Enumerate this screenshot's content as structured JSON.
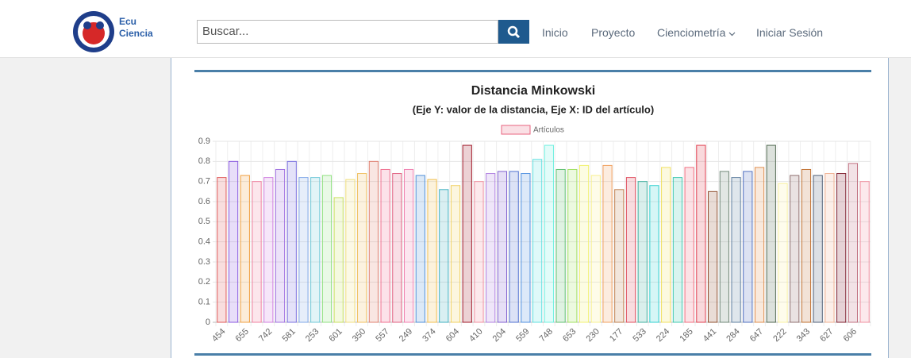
{
  "nav": {
    "brand": [
      "Ecu",
      "Ciencia"
    ],
    "search_placeholder": "Buscar...",
    "links": [
      "Inicio",
      "Proyecto",
      "Cienciometría",
      "Iniciar Sesión"
    ]
  },
  "chart_data": {
    "type": "bar",
    "title": "Distancia Minkowski",
    "subtitle": "(Eje Y: valor de la distancia, Eje X: ID del artículo)",
    "legend": {
      "name": "Artículos",
      "color": "#e8637f"
    },
    "categories": [
      "454",
      null,
      "655",
      null,
      "742",
      null,
      "581",
      null,
      "253",
      null,
      "601",
      null,
      "350",
      null,
      "557",
      null,
      "249",
      null,
      "374",
      null,
      "604",
      null,
      "410",
      null,
      "204",
      null,
      "559",
      null,
      "748",
      null,
      "653",
      null,
      "230",
      null,
      "177",
      null,
      "533",
      null,
      "224",
      null,
      "185",
      null,
      "441",
      null,
      "284",
      null,
      "647",
      null,
      "222",
      null,
      "343",
      null,
      "627",
      null,
      "606",
      null
    ],
    "values": [
      0.72,
      0.8,
      0.73,
      0.7,
      0.72,
      0.76,
      0.8,
      0.72,
      0.72,
      0.73,
      0.62,
      0.71,
      0.74,
      0.8,
      0.76,
      0.74,
      0.76,
      0.73,
      0.71,
      0.66,
      0.68,
      0.88,
      0.7,
      0.74,
      0.75,
      0.75,
      0.74,
      0.81,
      0.88,
      0.76,
      0.76,
      0.78,
      0.73,
      0.78,
      0.66,
      0.72,
      0.7,
      0.68,
      0.77,
      0.72,
      0.77,
      0.88,
      0.65,
      0.75,
      0.72,
      0.75,
      0.77,
      0.88,
      0.69,
      0.73,
      0.76,
      0.73,
      0.74,
      0.74,
      0.79,
      0.7
    ],
    "colors": [
      "#e05a5a",
      "#8a5ae0",
      "#f0a040",
      "#f080a0",
      "#d080e0",
      "#a070e0",
      "#7a70e0",
      "#80a8e8",
      "#70c8d8",
      "#90e080",
      "#c8e060",
      "#f0e080",
      "#f0c060",
      "#e08070",
      "#f07090",
      "#e06080",
      "#f080b0",
      "#5090d8",
      "#f0c050",
      "#40b0c0",
      "#f0d060",
      "#a01828",
      "#f090a0",
      "#b080e0",
      "#8060d0",
      "#5070d0",
      "#5090e0",
      "#60e0e0",
      "#70f0e0",
      "#60c070",
      "#a0e060",
      "#f0f070",
      "#f8f090",
      "#f0a060",
      "#c08050",
      "#e05060",
      "#40b0a0",
      "#30d0d0",
      "#f0e060",
      "#40c8b0",
      "#f07080",
      "#e04050",
      "#905030",
      "#708878",
      "#6080a0",
      "#5070c0",
      "#e09050",
      "#506850",
      "#f8f0a0",
      "#907070",
      "#c07030",
      "#506078",
      "#f0b090",
      "#802030",
      "#c07080",
      "#f090a0"
    ],
    "ylim": [
      0,
      0.9
    ],
    "yticks": [
      0,
      0.1,
      0.2,
      0.3,
      0.4,
      0.5,
      0.6,
      0.7,
      0.8,
      0.9
    ],
    "grid": true
  }
}
